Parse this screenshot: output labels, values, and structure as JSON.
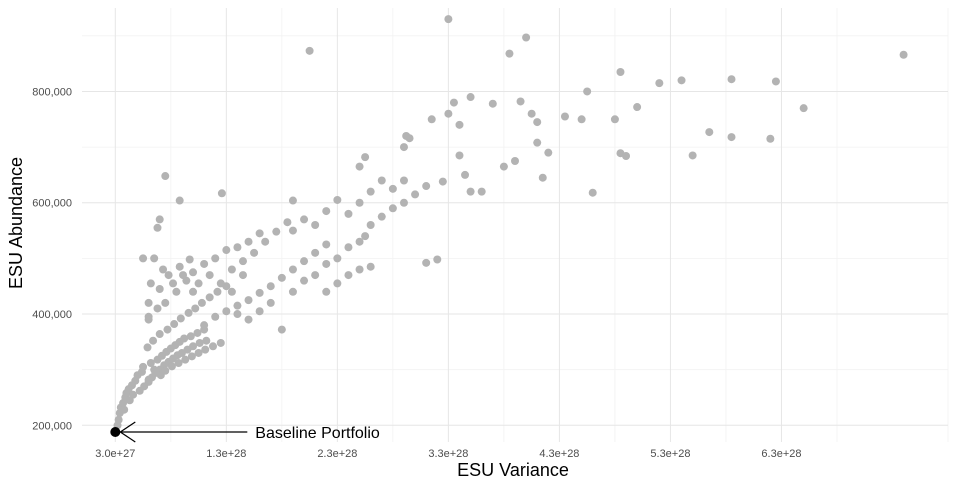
{
  "chart_data": {
    "type": "scatter",
    "title": "",
    "xlabel": "ESU Variance",
    "ylabel": "ESU Abundance",
    "x_ticks": [
      3e+27,
      1.3e+28,
      2.3e+28,
      3.3e+28,
      4.3e+28,
      5.3e+28,
      6.3e+28
    ],
    "x_tick_labels": [
      "3.0e+27",
      "1.3e+28",
      "2.3e+28",
      "3.3e+28",
      "4.3e+28",
      "5.3e+28",
      "6.3e+28"
    ],
    "y_ticks": [
      200000,
      400000,
      600000,
      800000
    ],
    "y_tick_labels": [
      "200,000",
      "400,000",
      "600,000",
      "800,000"
    ],
    "xlim": [
      0,
      7.8e+28
    ],
    "ylim": [
      170000,
      950000
    ],
    "grid": true,
    "point_color": "#b3b3b3",
    "highlight_color": "#000000",
    "series": [
      {
        "values": [
          [
            3.2e+27,
            200000
          ],
          [
            3.3e+27,
            210000
          ],
          [
            3.4e+27,
            222000
          ],
          [
            3.5e+27,
            232000
          ],
          [
            3.7e+27,
            240000
          ],
          [
            3.9e+27,
            250000
          ],
          [
            4e+27,
            258000
          ],
          [
            4.2e+27,
            265000
          ],
          [
            4.5e+27,
            272000
          ],
          [
            4.8e+27,
            280000
          ],
          [
            5e+27,
            290000
          ],
          [
            5.4e+27,
            296000
          ],
          [
            3.8e+27,
            228000
          ],
          [
            4.3e+27,
            245000
          ],
          [
            4.6e+27,
            255000
          ],
          [
            5.2e+27,
            262000
          ],
          [
            5.6e+27,
            270000
          ],
          [
            6e+27,
            278000
          ],
          [
            6.3e+27,
            286000
          ],
          [
            6.6e+27,
            294000
          ],
          [
            7e+27,
            300000
          ],
          [
            7.4e+27,
            308000
          ],
          [
            7.8e+27,
            314000
          ],
          [
            8.2e+27,
            320000
          ],
          [
            8.6e+27,
            326000
          ],
          [
            9e+27,
            330000
          ],
          [
            9.5e+27,
            336000
          ],
          [
            1e+28,
            342000
          ],
          [
            1.06e+28,
            348000
          ],
          [
            1.12e+28,
            352000
          ],
          [
            5.5e+27,
            305000
          ],
          [
            6.2e+27,
            312000
          ],
          [
            6.8e+27,
            318000
          ],
          [
            7.2e+27,
            325000
          ],
          [
            7.6e+27,
            332000
          ],
          [
            8e+27,
            338000
          ],
          [
            8.4e+27,
            344000
          ],
          [
            8.8e+27,
            350000
          ],
          [
            9.2e+27,
            356000
          ],
          [
            9.8e+27,
            360000
          ],
          [
            1.04e+28,
            366000
          ],
          [
            1.1e+28,
            372000
          ],
          [
            6e+27,
            282000
          ],
          [
            6.5e+27,
            300000
          ],
          [
            7.1e+27,
            290000
          ],
          [
            7.5e+27,
            298000
          ],
          [
            8.1e+27,
            306000
          ],
          [
            8.7e+27,
            312000
          ],
          [
            9.3e+27,
            318000
          ],
          [
            9.9e+27,
            324000
          ],
          [
            1.05e+28,
            330000
          ],
          [
            1.11e+28,
            336000
          ],
          [
            1.18e+28,
            342000
          ],
          [
            1.25e+28,
            348000
          ],
          [
            5.9e+27,
            340000
          ],
          [
            6.4e+27,
            352000
          ],
          [
            7e+27,
            364000
          ],
          [
            7.7e+27,
            372000
          ],
          [
            8.3e+27,
            382000
          ],
          [
            8.9e+27,
            392000
          ],
          [
            9.6e+27,
            402000
          ],
          [
            1.02e+28,
            410000
          ],
          [
            1.08e+28,
            420000
          ],
          [
            1.15e+28,
            430000
          ],
          [
            1.22e+28,
            440000
          ],
          [
            1.3e+28,
            450000
          ],
          [
            6e+27,
            390000
          ],
          [
            6.8e+27,
            410000
          ],
          [
            7.5e+27,
            420000
          ],
          [
            8.5e+27,
            440000
          ],
          [
            9.4e+27,
            460000
          ],
          [
            1e+28,
            475000
          ],
          [
            1.1e+28,
            490000
          ],
          [
            1.2e+28,
            500000
          ],
          [
            1.3e+28,
            515000
          ],
          [
            1.4e+28,
            520000
          ],
          [
            1.5e+28,
            530000
          ],
          [
            1.6e+28,
            545000
          ],
          [
            6e+27,
            420000
          ],
          [
            6e+27,
            395000
          ],
          [
            7e+27,
            445000
          ],
          [
            7.8e+27,
            470000
          ],
          [
            8.8e+27,
            485000
          ],
          [
            9.7e+27,
            498000
          ],
          [
            6.5e+27,
            500000
          ],
          [
            5.5e+27,
            500000
          ],
          [
            6.2e+27,
            455000
          ],
          [
            7.3e+27,
            480000
          ],
          [
            8.2e+27,
            455000
          ],
          [
            9.1e+27,
            470000
          ],
          [
            7e+27,
            570000
          ],
          [
            6.8e+27,
            555000
          ],
          [
            7.5e+27,
            648000
          ],
          [
            8.8e+27,
            604000
          ],
          [
            1.26e+28,
            617000
          ],
          [
            1.9e+28,
            604000
          ],
          [
            1.1e+28,
            380000
          ],
          [
            1.2e+28,
            395000
          ],
          [
            1.3e+28,
            405000
          ],
          [
            1.4e+28,
            415000
          ],
          [
            1.5e+28,
            425000
          ],
          [
            1.6e+28,
            438000
          ],
          [
            1.7e+28,
            450000
          ],
          [
            1.8e+28,
            465000
          ],
          [
            1.9e+28,
            480000
          ],
          [
            2e+28,
            495000
          ],
          [
            2.1e+28,
            510000
          ],
          [
            2.2e+28,
            525000
          ],
          [
            1.35e+28,
            480000
          ],
          [
            1.45e+28,
            495000
          ],
          [
            1.55e+28,
            510000
          ],
          [
            1.65e+28,
            530000
          ],
          [
            1.75e+28,
            548000
          ],
          [
            1.85e+28,
            565000
          ],
          [
            1.4e+28,
            400000
          ],
          [
            1.5e+28,
            390000
          ],
          [
            1.6e+28,
            405000
          ],
          [
            1.7e+28,
            420000
          ],
          [
            1.8e+28,
            372000
          ],
          [
            1.9e+28,
            440000
          ],
          [
            2e+28,
            460000
          ],
          [
            2.1e+28,
            470000
          ],
          [
            2.2e+28,
            490000
          ],
          [
            2.3e+28,
            500000
          ],
          [
            2.4e+28,
            520000
          ],
          [
            2.5e+28,
            530000
          ],
          [
            2.2e+28,
            440000
          ],
          [
            2.3e+28,
            455000
          ],
          [
            2.4e+28,
            470000
          ],
          [
            2.5e+28,
            480000
          ],
          [
            2.6e+28,
            485000
          ],
          [
            2.55e+28,
            540000
          ],
          [
            2.6e+28,
            560000
          ],
          [
            2.7e+28,
            575000
          ],
          [
            2.8e+28,
            590000
          ],
          [
            2.9e+28,
            600000
          ],
          [
            3e+28,
            615000
          ],
          [
            3.1e+28,
            630000
          ],
          [
            2.4e+28,
            580000
          ],
          [
            2.5e+28,
            600000
          ],
          [
            2.6e+28,
            620000
          ],
          [
            2.7e+28,
            640000
          ],
          [
            2.8e+28,
            625000
          ],
          [
            2.9e+28,
            640000
          ],
          [
            2.5e+28,
            665000
          ],
          [
            2.55e+28,
            682000
          ],
          [
            2.9e+28,
            700000
          ],
          [
            2.95e+28,
            716000
          ],
          [
            2.92e+28,
            720000
          ],
          [
            3.15e+28,
            750000
          ],
          [
            2.05e+28,
            873000
          ],
          [
            3.1e+28,
            492000
          ],
          [
            3.2e+28,
            498000
          ],
          [
            3.25e+28,
            638000
          ],
          [
            3.3e+28,
            760000
          ],
          [
            3.35e+28,
            780000
          ],
          [
            3.4e+28,
            685000
          ],
          [
            3.45e+28,
            650000
          ],
          [
            3.5e+28,
            620000
          ],
          [
            3.6e+28,
            620000
          ],
          [
            3.4e+28,
            740000
          ],
          [
            3.5e+28,
            790000
          ],
          [
            3.3e+28,
            930000
          ],
          [
            3.7e+28,
            778000
          ],
          [
            3.8e+28,
            665000
          ],
          [
            3.9e+28,
            675000
          ],
          [
            3.95e+28,
            782000
          ],
          [
            4.1e+28,
            745000
          ],
          [
            4.05e+28,
            760000
          ],
          [
            4.2e+28,
            690000
          ],
          [
            4.1e+28,
            708000
          ],
          [
            4.15e+28,
            645000
          ],
          [
            3.85e+28,
            868000
          ],
          [
            4e+28,
            897000
          ],
          [
            4.35e+28,
            755000
          ],
          [
            4.5e+28,
            750000
          ],
          [
            4.55e+28,
            800000
          ],
          [
            4.6e+28,
            618000
          ],
          [
            4.8e+28,
            750000
          ],
          [
            4.85e+28,
            689000
          ],
          [
            4.9e+28,
            684000
          ],
          [
            4.85e+28,
            835000
          ],
          [
            5e+28,
            772000
          ],
          [
            5.2e+28,
            815000
          ],
          [
            5.4e+28,
            820000
          ],
          [
            5.5e+28,
            685000
          ],
          [
            5.65e+28,
            727000
          ],
          [
            5.85e+28,
            718000
          ],
          [
            5.85e+28,
            822000
          ],
          [
            6.2e+28,
            715000
          ],
          [
            6.25e+28,
            818000
          ],
          [
            6.5e+28,
            770000
          ],
          [
            7.4e+28,
            866000
          ],
          [
            1.9e+28,
            550000
          ],
          [
            2e+28,
            570000
          ],
          [
            2.1e+28,
            560000
          ],
          [
            2.2e+28,
            585000
          ],
          [
            2.3e+28,
            605000
          ],
          [
            1e+28,
            440000
          ],
          [
            1.05e+28,
            455000
          ],
          [
            1.15e+28,
            470000
          ],
          [
            1.25e+28,
            455000
          ],
          [
            1.35e+28,
            440000
          ],
          [
            1.45e+28,
            470000
          ]
        ]
      }
    ],
    "highlight": {
      "label": "Baseline Portfolio",
      "x": 3e+27,
      "y": 188000
    }
  }
}
